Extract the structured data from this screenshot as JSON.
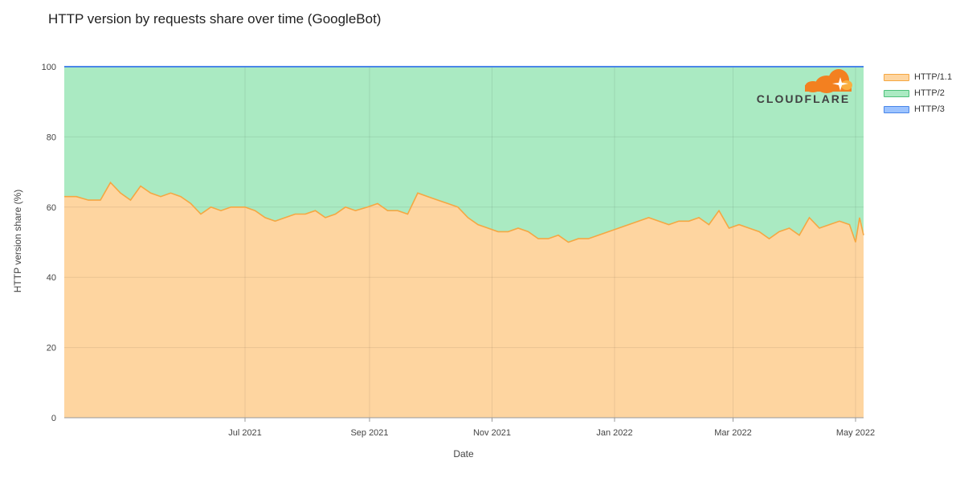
{
  "chart_data": {
    "type": "area",
    "title": "HTTP version by requests share over time (GoogleBot)",
    "xlabel": "Date",
    "ylabel": "HTTP version share (%)",
    "ylim": [
      0,
      100
    ],
    "yticks": [
      0,
      20,
      40,
      60,
      80,
      100
    ],
    "xlim": [
      "2021-04-02",
      "2022-05-05"
    ],
    "xticks": [
      {
        "date": "2021-07-01",
        "label": "Jul 2021"
      },
      {
        "date": "2021-09-01",
        "label": "Sep 2021"
      },
      {
        "date": "2021-11-01",
        "label": "Nov 2021"
      },
      {
        "date": "2022-01-01",
        "label": "Jan 2022"
      },
      {
        "date": "2022-03-01",
        "label": "Mar 2022"
      },
      {
        "date": "2022-05-01",
        "label": "May 2022"
      }
    ],
    "stacked": true,
    "grid": true,
    "legend_position": "right",
    "logo": "CLOUDFLARE",
    "series": [
      {
        "name": "HTTP/1.1",
        "color": "#f5a742",
        "fill": "#fed5a0",
        "points": [
          [
            "2021-04-02",
            63
          ],
          [
            "2021-04-08",
            63
          ],
          [
            "2021-04-14",
            62
          ],
          [
            "2021-04-20",
            62
          ],
          [
            "2021-04-25",
            67
          ],
          [
            "2021-04-30",
            64
          ],
          [
            "2021-05-05",
            62
          ],
          [
            "2021-05-10",
            66
          ],
          [
            "2021-05-15",
            64
          ],
          [
            "2021-05-20",
            63
          ],
          [
            "2021-05-25",
            64
          ],
          [
            "2021-05-30",
            63
          ],
          [
            "2021-06-04",
            61
          ],
          [
            "2021-06-09",
            58
          ],
          [
            "2021-06-14",
            60
          ],
          [
            "2021-06-19",
            59
          ],
          [
            "2021-06-24",
            60
          ],
          [
            "2021-07-01",
            60
          ],
          [
            "2021-07-06",
            59
          ],
          [
            "2021-07-11",
            57
          ],
          [
            "2021-07-16",
            56
          ],
          [
            "2021-07-21",
            57
          ],
          [
            "2021-07-26",
            58
          ],
          [
            "2021-07-31",
            58
          ],
          [
            "2021-08-05",
            59
          ],
          [
            "2021-08-10",
            57
          ],
          [
            "2021-08-15",
            58
          ],
          [
            "2021-08-20",
            60
          ],
          [
            "2021-08-25",
            59
          ],
          [
            "2021-08-31",
            60
          ],
          [
            "2021-09-05",
            61
          ],
          [
            "2021-09-10",
            59
          ],
          [
            "2021-09-15",
            59
          ],
          [
            "2021-09-20",
            58
          ],
          [
            "2021-09-25",
            64
          ],
          [
            "2021-09-30",
            63
          ],
          [
            "2021-10-05",
            62
          ],
          [
            "2021-10-10",
            61
          ],
          [
            "2021-10-15",
            60
          ],
          [
            "2021-10-20",
            57
          ],
          [
            "2021-10-25",
            55
          ],
          [
            "2021-10-30",
            54
          ],
          [
            "2021-11-04",
            53
          ],
          [
            "2021-11-09",
            53
          ],
          [
            "2021-11-14",
            54
          ],
          [
            "2021-11-19",
            53
          ],
          [
            "2021-11-24",
            51
          ],
          [
            "2021-11-29",
            51
          ],
          [
            "2021-12-04",
            52
          ],
          [
            "2021-12-09",
            50
          ],
          [
            "2021-12-14",
            51
          ],
          [
            "2021-12-19",
            51
          ],
          [
            "2021-12-24",
            52
          ],
          [
            "2021-12-29",
            53
          ],
          [
            "2022-01-03",
            54
          ],
          [
            "2022-01-08",
            55
          ],
          [
            "2022-01-13",
            56
          ],
          [
            "2022-01-18",
            57
          ],
          [
            "2022-01-23",
            56
          ],
          [
            "2022-01-28",
            55
          ],
          [
            "2022-02-02",
            56
          ],
          [
            "2022-02-07",
            56
          ],
          [
            "2022-02-12",
            57
          ],
          [
            "2022-02-17",
            55
          ],
          [
            "2022-02-22",
            59
          ],
          [
            "2022-02-27",
            54
          ],
          [
            "2022-03-04",
            55
          ],
          [
            "2022-03-09",
            54
          ],
          [
            "2022-03-14",
            53
          ],
          [
            "2022-03-19",
            51
          ],
          [
            "2022-03-24",
            53
          ],
          [
            "2022-03-29",
            54
          ],
          [
            "2022-04-03",
            52
          ],
          [
            "2022-04-08",
            57
          ],
          [
            "2022-04-13",
            54
          ],
          [
            "2022-04-18",
            55
          ],
          [
            "2022-04-23",
            56
          ],
          [
            "2022-04-28",
            55
          ],
          [
            "2022-05-01",
            50
          ],
          [
            "2022-05-03",
            57
          ],
          [
            "2022-05-05",
            52
          ]
        ]
      },
      {
        "name": "HTTP/2",
        "color": "#4dc07a",
        "fill": "#aaeac2",
        "note_complement_to": 100
      },
      {
        "name": "HTTP/3",
        "color": "#4a86e8",
        "fill": "#9cc3ff",
        "value": 0
      }
    ]
  }
}
